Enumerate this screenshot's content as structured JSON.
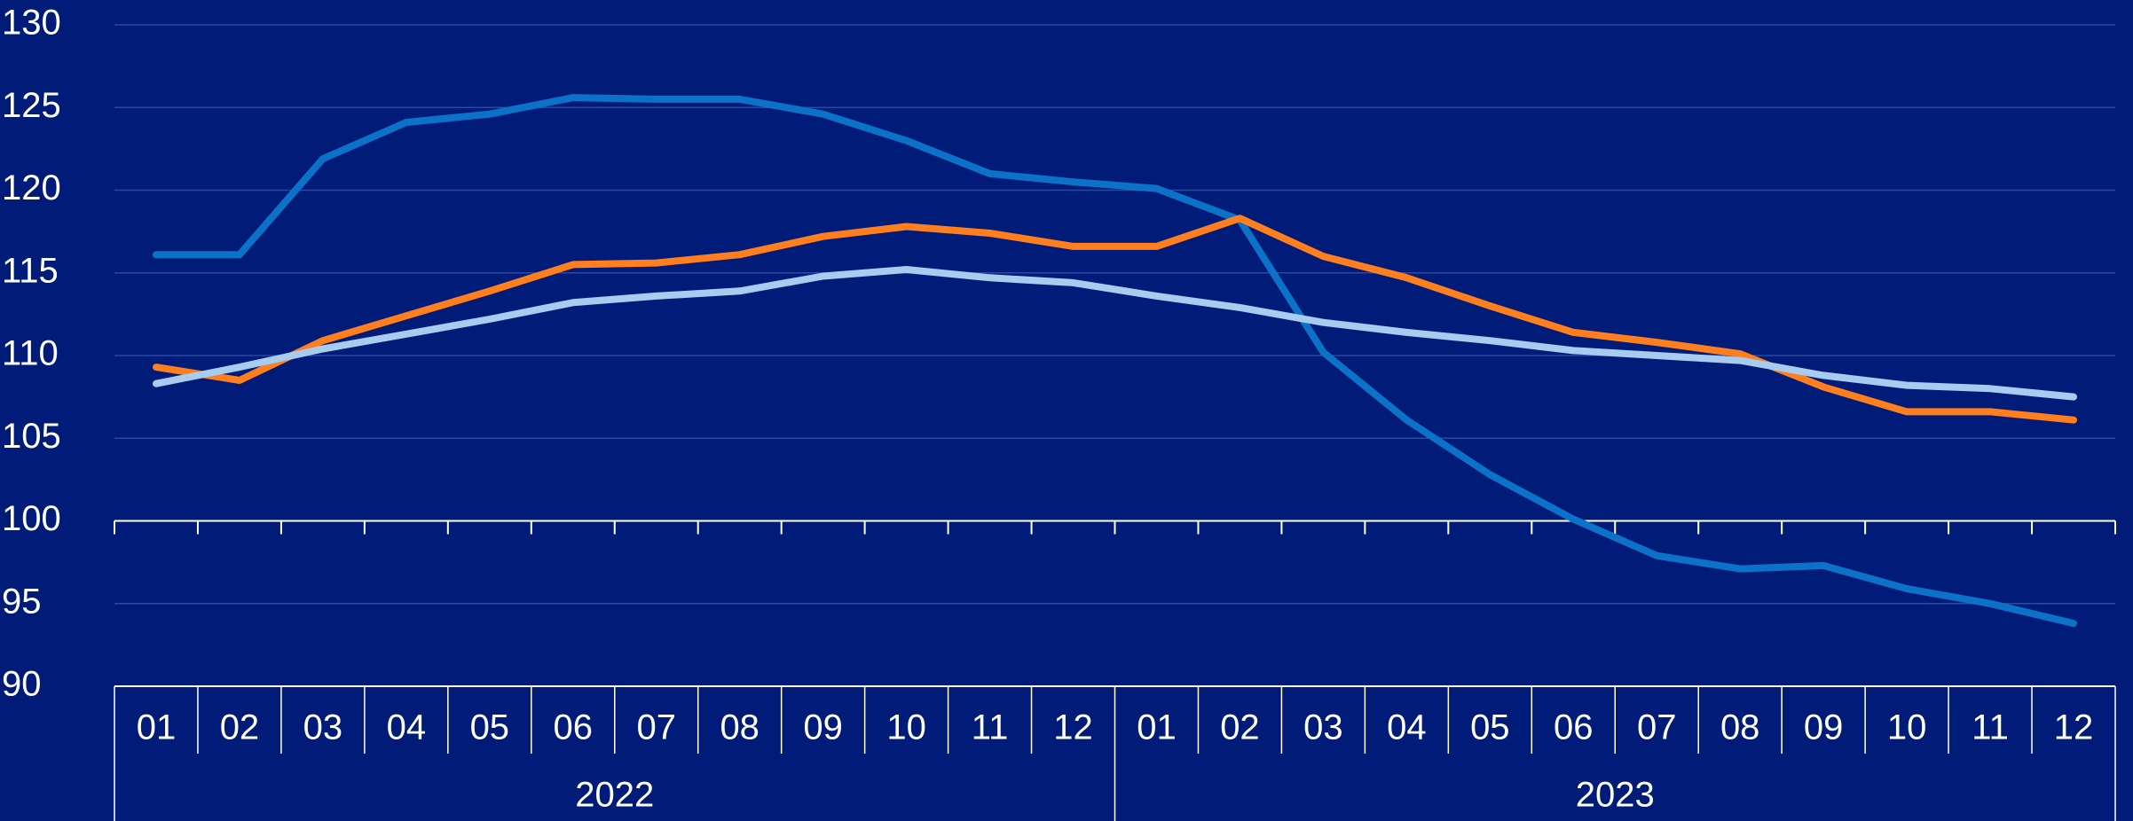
{
  "chart_data": {
    "type": "line",
    "categories": [
      "01",
      "02",
      "03",
      "04",
      "05",
      "06",
      "07",
      "08",
      "09",
      "10",
      "11",
      "12",
      "01",
      "02",
      "03",
      "04",
      "05",
      "06",
      "07",
      "08",
      "09",
      "10",
      "11",
      "12"
    ],
    "category_groups": [
      "2022",
      "2023"
    ],
    "series": [
      {
        "color": "#0b72c8",
        "values": [
          116.1,
          116.1,
          121.9,
          124.1,
          124.6,
          125.6,
          125.5,
          125.5,
          124.6,
          123.0,
          121.0,
          120.5,
          120.1,
          118.2,
          110.2,
          106.1,
          102.8,
          100.1,
          97.9,
          97.1,
          97.3,
          95.9,
          95.0,
          93.8
        ]
      },
      {
        "color": "#ff7f1e",
        "values": [
          109.3,
          108.5,
          110.9,
          112.4,
          113.9,
          115.5,
          115.6,
          116.1,
          117.2,
          117.8,
          117.4,
          116.6,
          116.6,
          118.3,
          116.0,
          114.7,
          113.0,
          111.4,
          110.8,
          110.1,
          108.1,
          106.6,
          106.6,
          106.1
        ]
      },
      {
        "color": "#a8cbf0",
        "values": [
          108.3,
          109.3,
          110.4,
          111.3,
          112.2,
          113.2,
          113.6,
          113.9,
          114.8,
          115.2,
          114.7,
          114.4,
          113.6,
          112.9,
          112.0,
          111.4,
          110.9,
          110.3,
          110.0,
          109.7,
          108.8,
          108.2,
          108.0,
          107.5
        ]
      }
    ],
    "ylim": [
      90,
      130
    ],
    "yticks": [
      90,
      95,
      100,
      105,
      110,
      115,
      120,
      125,
      130
    ],
    "x_axis_crossing": 100,
    "grid": true
  }
}
